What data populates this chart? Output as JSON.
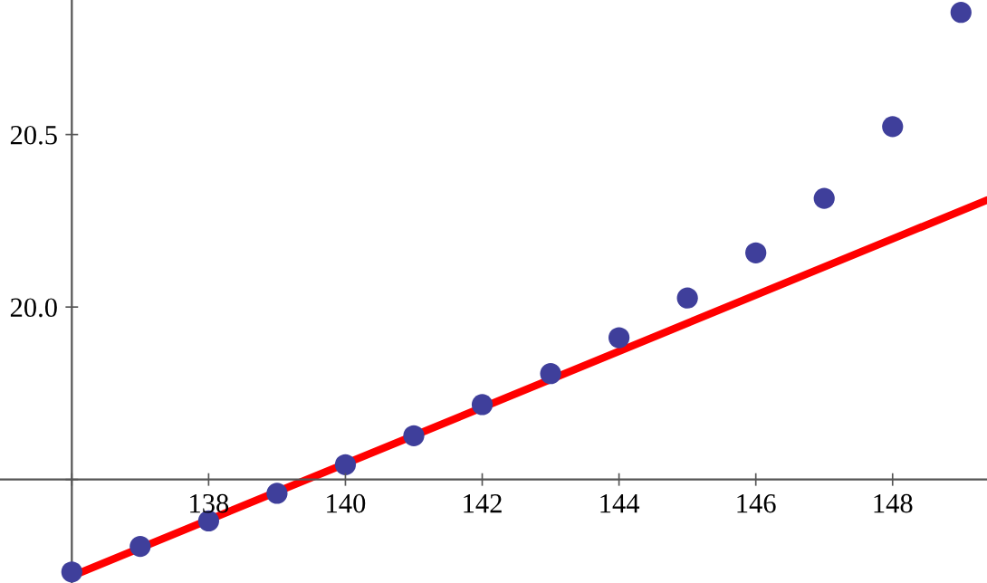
{
  "chart_data": {
    "type": "scatter",
    "xlim": [
      134.95,
      149.38
    ],
    "ylim": [
      19.2,
      20.89
    ],
    "xticks": [
      {
        "value": 136,
        "label": null
      },
      138,
      140,
      142,
      144,
      146,
      148
    ],
    "yticks": [
      {
        "value": 19.5,
        "label": null
      },
      {
        "value": 20.0,
        "label": "20.0"
      },
      {
        "value": 20.5,
        "label": "20.5"
      }
    ],
    "grid": false,
    "legend": false,
    "series": [
      {
        "color": "#3f3f9b",
        "marker": "circle",
        "x": [
          136,
          137,
          138,
          139,
          140,
          141,
          142,
          143,
          144,
          145,
          146,
          147,
          148,
          149
        ],
        "values": [
          19.232,
          19.306,
          19.38,
          19.46,
          19.543,
          19.627,
          19.717,
          19.807,
          19.911,
          20.026,
          20.157,
          20.315,
          20.523,
          20.854
        ]
      },
      {
        "type": "line",
        "color": "#ff0000",
        "line_style": "solid",
        "marker": "none",
        "x": [
          136,
          149.38
        ],
        "values": [
          19.22,
          20.31
        ]
      }
    ]
  }
}
